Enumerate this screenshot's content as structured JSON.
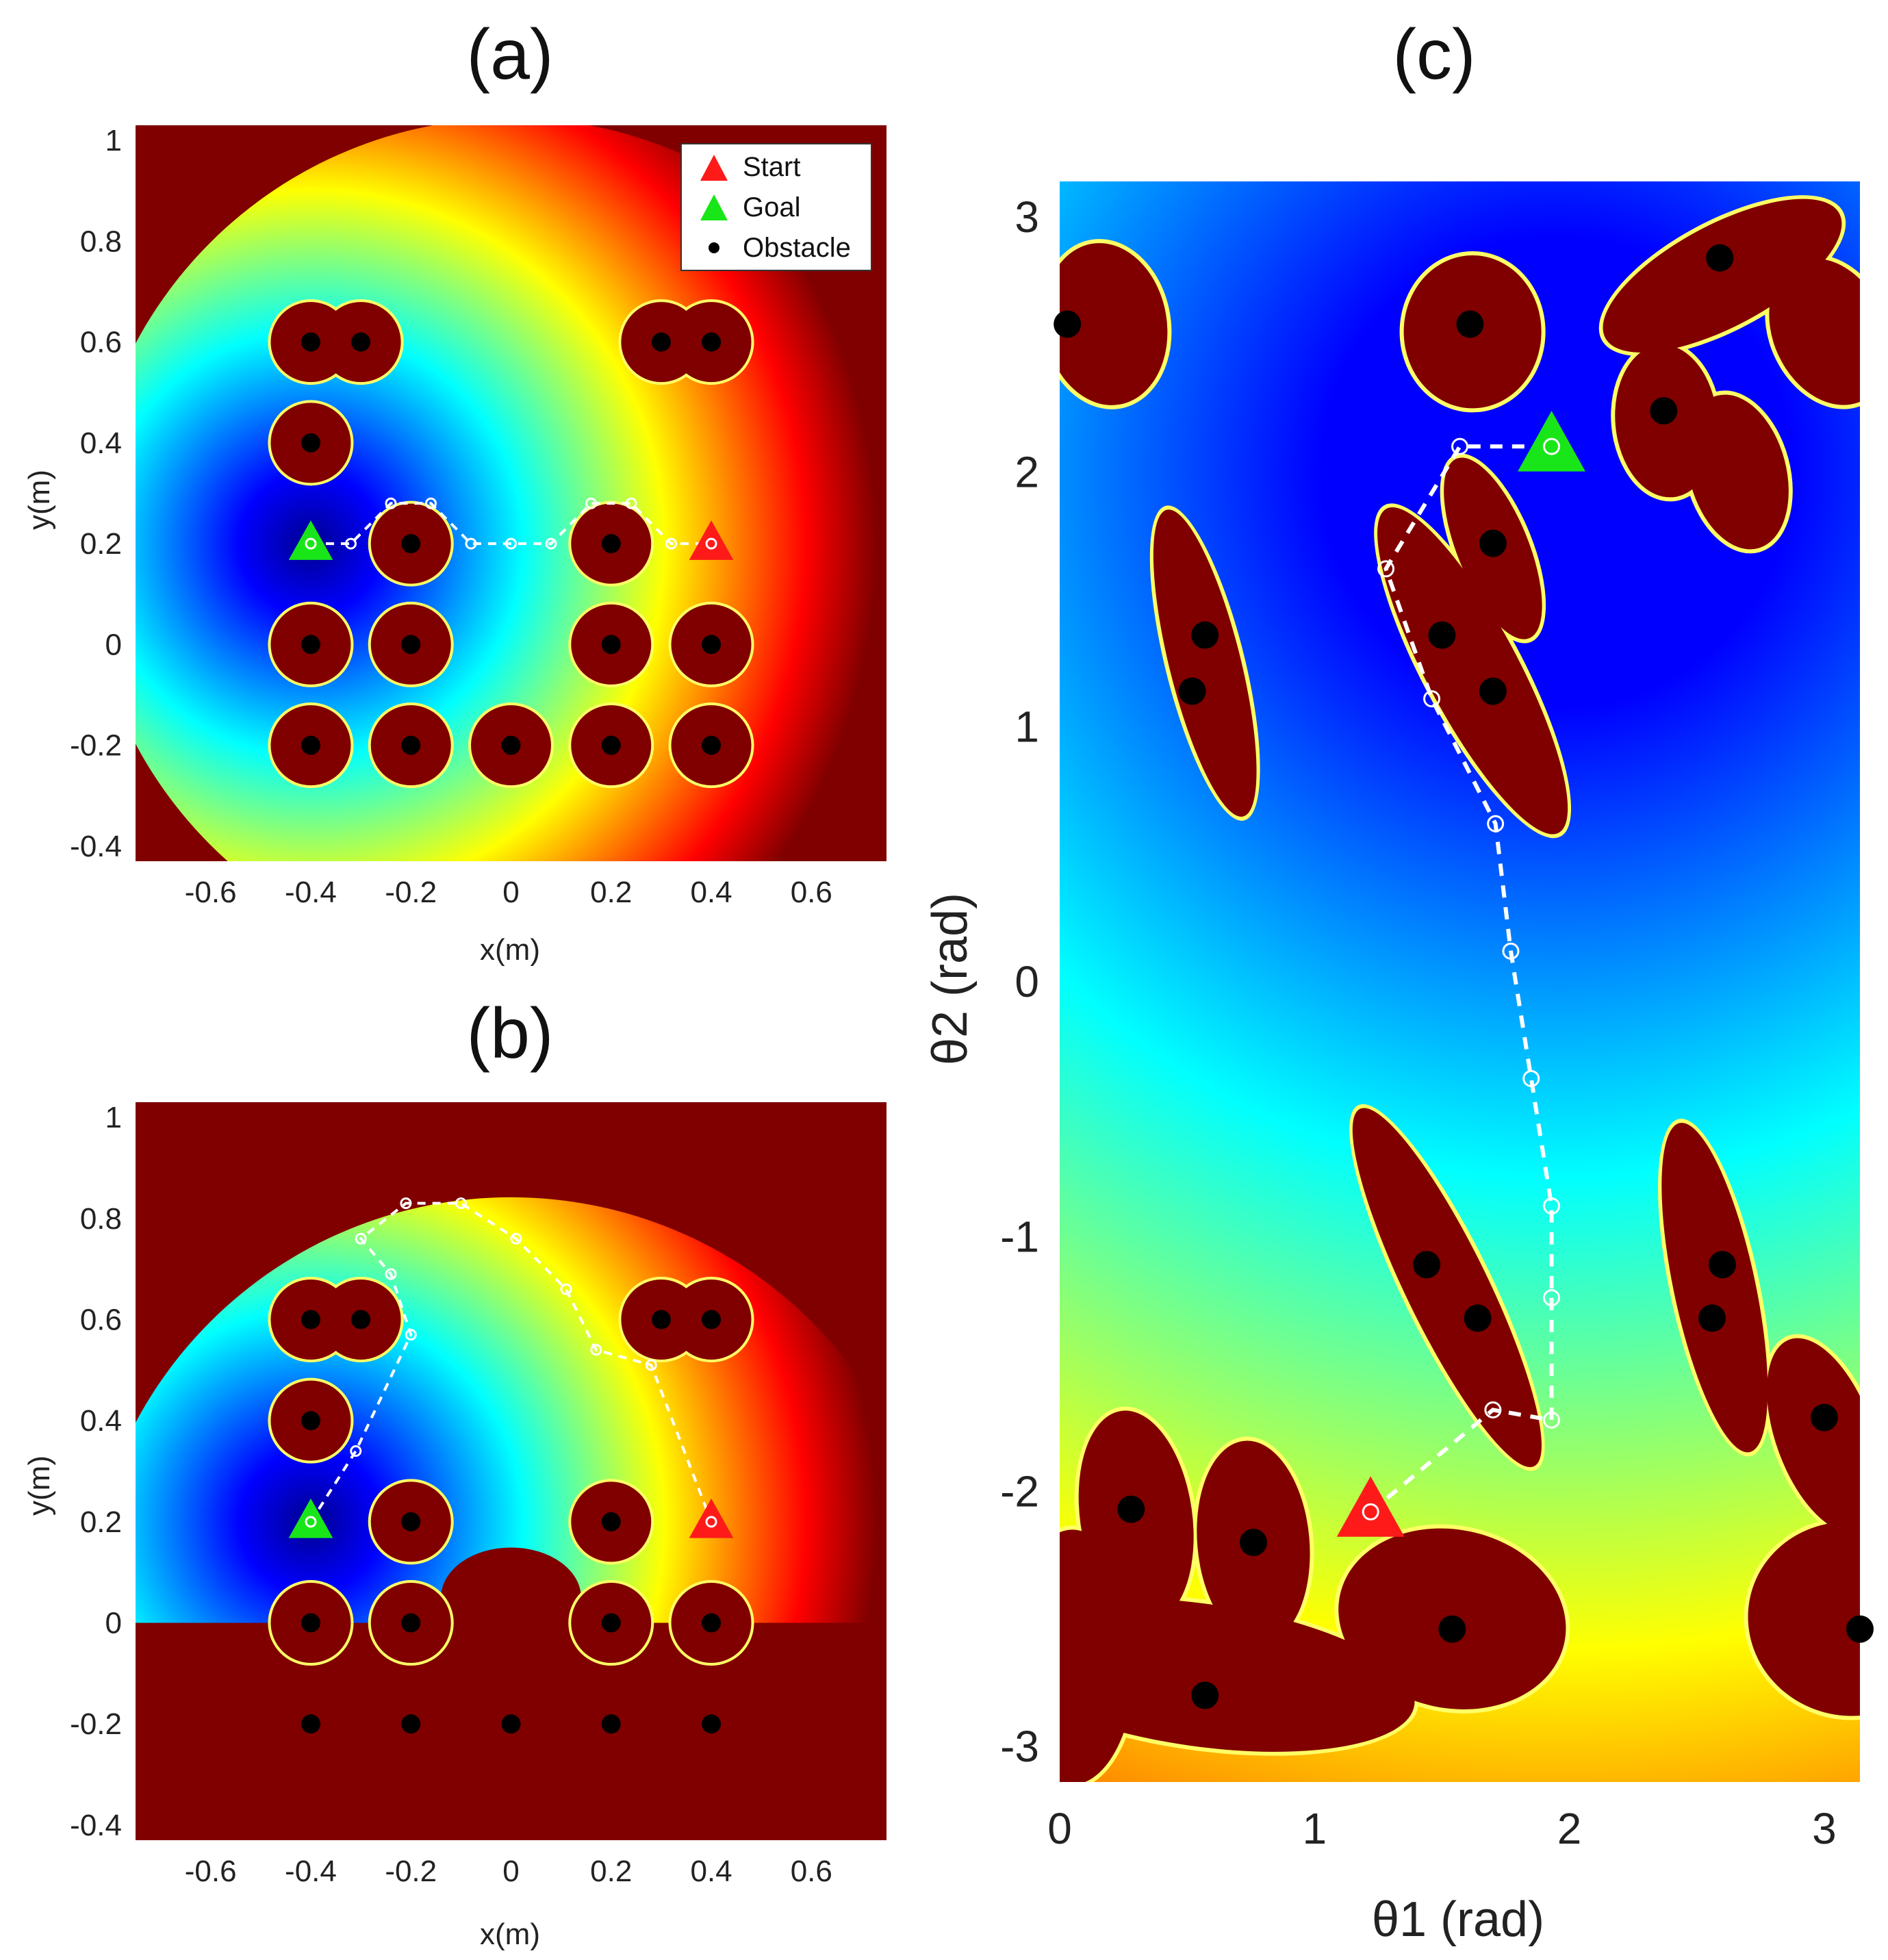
{
  "colors": {
    "obstacle_region": "#800000",
    "obstacle_point": "#000000",
    "start_marker": "#ff1a1a",
    "goal_marker": "#19e619",
    "path": "#ffffff",
    "colormap": [
      "#00008f",
      "#0000ff",
      "#0080ff",
      "#00ffff",
      "#80ff80",
      "#ffff00",
      "#ff8000",
      "#ff0000",
      "#800000"
    ]
  },
  "legend": {
    "start": "Start",
    "goal": "Goal",
    "obstacle": "Obstacle",
    "placement": "top-right of panel (a)"
  },
  "chart_data": [
    {
      "panel": "(a)",
      "type": "heatmap",
      "title": "(a)",
      "xlabel": "x(m)",
      "ylabel": "y(m)",
      "xlim": [
        -0.75,
        0.75
      ],
      "ylim": [
        -0.43,
        1.03
      ],
      "xticks": [
        "-0.6",
        "-0.4",
        "-0.2",
        "0",
        "0.2",
        "0.4",
        "0.6"
      ],
      "yticks": [
        "-0.4",
        "-0.2",
        "0",
        "0.2",
        "0.4",
        "0.6",
        "0.8",
        "1"
      ],
      "field_center": [
        -0.4,
        0.2
      ],
      "reach_radius": 0.85,
      "start": [
        0.4,
        0.2
      ],
      "goal": [
        -0.4,
        0.2
      ],
      "obstacles": [
        [
          -0.4,
          0.6
        ],
        [
          -0.3,
          0.6
        ],
        [
          0.3,
          0.6
        ],
        [
          0.4,
          0.6
        ],
        [
          -0.4,
          0.4
        ],
        [
          -0.2,
          0.2
        ],
        [
          0.2,
          0.2
        ],
        [
          -0.4,
          0.0
        ],
        [
          -0.2,
          0.0
        ],
        [
          0.2,
          0.0
        ],
        [
          0.4,
          0.0
        ],
        [
          -0.4,
          -0.2
        ],
        [
          -0.2,
          -0.2
        ],
        [
          0.0,
          -0.2
        ],
        [
          0.2,
          -0.2
        ],
        [
          0.4,
          -0.2
        ]
      ],
      "obstacle_radius": 0.08,
      "path": [
        [
          -0.4,
          0.2
        ],
        [
          -0.32,
          0.2
        ],
        [
          -0.24,
          0.28
        ],
        [
          -0.16,
          0.28
        ],
        [
          -0.08,
          0.2
        ],
        [
          0.0,
          0.2
        ],
        [
          0.08,
          0.2
        ],
        [
          0.16,
          0.28
        ],
        [
          0.24,
          0.28
        ],
        [
          0.32,
          0.2
        ],
        [
          0.4,
          0.2
        ]
      ]
    },
    {
      "panel": "(b)",
      "type": "heatmap",
      "title": "(b)",
      "xlabel": "x(m)",
      "ylabel": "y(m)",
      "xlim": [
        -0.75,
        0.75
      ],
      "ylim": [
        -0.43,
        1.03
      ],
      "xticks": [
        "-0.6",
        "-0.4",
        "-0.2",
        "0",
        "0.2",
        "0.4",
        "0.6"
      ],
      "yticks": [
        "-0.4",
        "-0.2",
        "0",
        "0.2",
        "0.4",
        "0.6",
        "0.8",
        "1"
      ],
      "field_center": [
        -0.4,
        0.2
      ],
      "reach_radius": 0.85,
      "floor_y": 0.0,
      "start": [
        0.4,
        0.2
      ],
      "goal": [
        -0.4,
        0.2
      ],
      "obstacles": [
        [
          -0.4,
          0.6
        ],
        [
          -0.3,
          0.6
        ],
        [
          0.3,
          0.6
        ],
        [
          0.4,
          0.6
        ],
        [
          -0.4,
          0.4
        ],
        [
          -0.2,
          0.2
        ],
        [
          0.2,
          0.2
        ],
        [
          -0.4,
          0.0
        ],
        [
          -0.2,
          0.0
        ],
        [
          0.2,
          0.0
        ],
        [
          0.4,
          0.0
        ],
        [
          -0.4,
          -0.2
        ],
        [
          -0.2,
          -0.2
        ],
        [
          0.0,
          -0.2
        ],
        [
          0.2,
          -0.2
        ],
        [
          0.4,
          -0.2
        ]
      ],
      "obstacle_radius": 0.08,
      "path": [
        [
          -0.4,
          0.2
        ],
        [
          -0.31,
          0.34
        ],
        [
          -0.2,
          0.57
        ],
        [
          -0.24,
          0.69
        ],
        [
          -0.3,
          0.76
        ],
        [
          -0.21,
          0.83
        ],
        [
          -0.1,
          0.83
        ],
        [
          0.01,
          0.76
        ],
        [
          0.11,
          0.66
        ],
        [
          0.17,
          0.54
        ],
        [
          0.28,
          0.51
        ],
        [
          0.4,
          0.2
        ]
      ]
    },
    {
      "panel": "(c)",
      "type": "heatmap",
      "title": "(c)",
      "xlabel": "θ1 (rad)",
      "ylabel": "θ2 (rad)",
      "xlim": [
        0,
        3.14
      ],
      "ylim": [
        -3.14,
        3.14
      ],
      "xticks": [
        "0",
        "1",
        "2",
        "3"
      ],
      "yticks": [
        "-3",
        "-2",
        "-1",
        "0",
        "1",
        "2",
        "3"
      ],
      "field_center": [
        1.95,
        2.0
      ],
      "start": [
        1.22,
        -2.08
      ],
      "goal": [
        1.93,
        2.1
      ],
      "obstacles": [
        [
          0.03,
          2.58
        ],
        [
          1.61,
          2.58
        ],
        [
          2.59,
          2.84
        ],
        [
          2.37,
          2.24
        ],
        [
          1.7,
          1.72
        ],
        [
          0.57,
          1.36
        ],
        [
          0.52,
          1.14
        ],
        [
          1.5,
          1.36
        ],
        [
          1.7,
          1.14
        ],
        [
          1.44,
          -1.11
        ],
        [
          1.64,
          -1.32
        ],
        [
          2.6,
          -1.11
        ],
        [
          2.56,
          -1.32
        ],
        [
          3.0,
          -1.71
        ],
        [
          0.28,
          -2.07
        ],
        [
          0.76,
          -2.2
        ],
        [
          1.54,
          -2.54
        ],
        [
          3.14,
          -2.54
        ],
        [
          0.57,
          -2.8
        ]
      ],
      "path": [
        [
          1.22,
          -2.08
        ],
        [
          1.7,
          -1.68
        ],
        [
          1.93,
          -1.72
        ],
        [
          1.93,
          -1.24
        ],
        [
          1.93,
          -0.88
        ],
        [
          1.85,
          -0.38
        ],
        [
          1.77,
          0.12
        ],
        [
          1.71,
          0.62
        ],
        [
          1.46,
          1.11
        ],
        [
          1.28,
          1.62
        ],
        [
          1.57,
          2.1
        ],
        [
          1.93,
          2.1
        ]
      ]
    }
  ]
}
